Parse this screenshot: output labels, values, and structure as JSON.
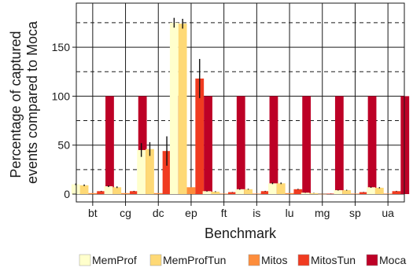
{
  "chart_data": {
    "type": "bar",
    "title": "",
    "xlabel": "Benchmark",
    "ylabel_lines": [
      "Percentage of captured",
      "events compared to Moca"
    ],
    "categories": [
      "bt",
      "cg",
      "dc",
      "ep",
      "ft",
      "is",
      "lu",
      "mg",
      "sp",
      "ua"
    ],
    "ylim": [
      -8,
      195
    ],
    "yticks": [
      0,
      50,
      100,
      150
    ],
    "dashed_lines": [
      25,
      75,
      125,
      175
    ],
    "grid": true,
    "legend_position": "bottom",
    "series": [
      {
        "name": "MemProf",
        "color": "#ffffcc",
        "values": [
          10,
          8,
          45,
          175,
          3,
          5,
          11,
          1.5,
          4,
          7
        ],
        "errors": [
          0.8,
          0.8,
          7,
          5,
          0.4,
          0.5,
          0.8,
          0.2,
          0.4,
          0.6
        ]
      },
      {
        "name": "MemProfTun",
        "color": "#fed976",
        "values": [
          9,
          7,
          46,
          174,
          2.5,
          5,
          11,
          1,
          4,
          6.5
        ],
        "errors": [
          0.8,
          0.8,
          7,
          5,
          0.4,
          0.5,
          0.8,
          0.2,
          0.4,
          0.6
        ]
      },
      {
        "name": "Mitos",
        "color": "#fd8d3c",
        "values": [
          1,
          1,
          1,
          7,
          0.5,
          0.5,
          1,
          0.2,
          0.5,
          0.5
        ],
        "errors": [
          0,
          0,
          0,
          0,
          0,
          0,
          0,
          0,
          0,
          0
        ]
      },
      {
        "name": "MitosTun",
        "color": "#f03b20",
        "values": [
          3,
          3,
          44,
          118,
          2,
          3,
          5,
          0.5,
          2,
          3
        ],
        "errors": [
          0.3,
          0.3,
          15,
          20,
          0.2,
          0.3,
          0.4,
          0.1,
          0.2,
          0.3
        ]
      },
      {
        "name": "Moca",
        "color": "#bd0026",
        "values": [
          100,
          100,
          100,
          100,
          100,
          100,
          100,
          100,
          100,
          100
        ],
        "errors": [
          0,
          0,
          0,
          0,
          0,
          0,
          0,
          0,
          0,
          0
        ]
      }
    ]
  }
}
